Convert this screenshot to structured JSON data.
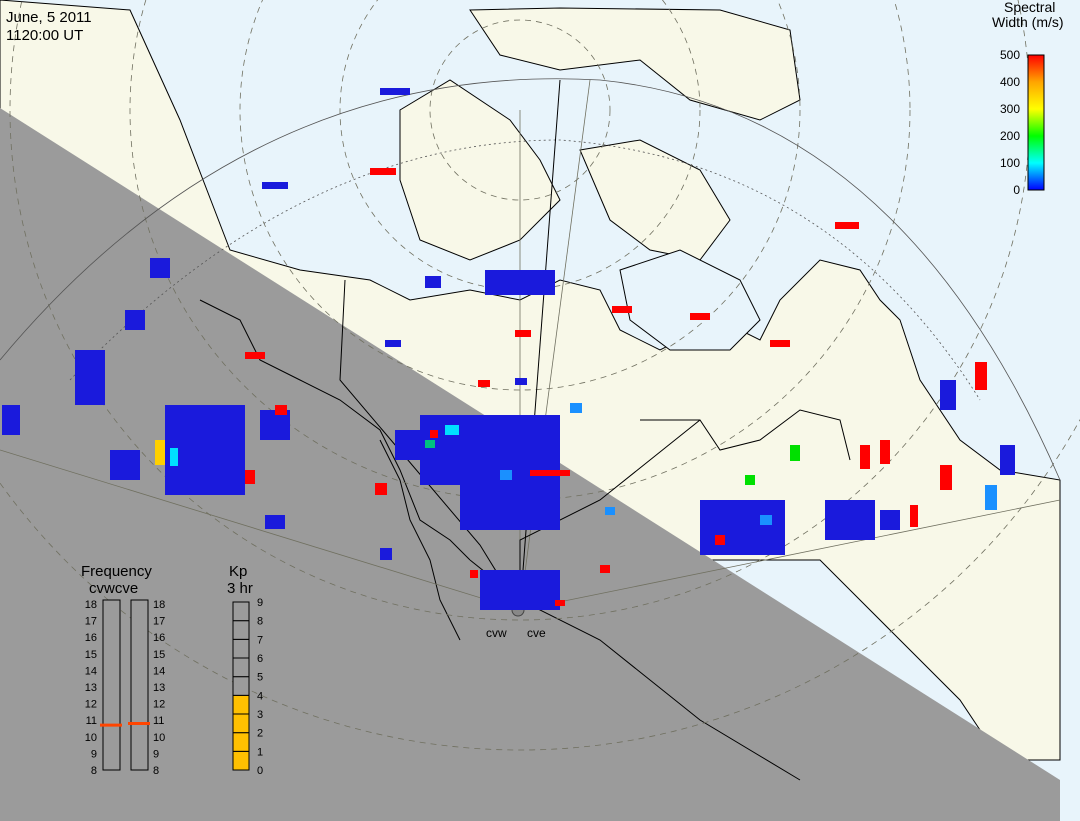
{
  "header": {
    "date": "June, 5 2011",
    "time": "1120:00 UT"
  },
  "colorbar": {
    "title_line1": "Spectral",
    "title_line2": "Width (m/s)",
    "ticks": [
      "500",
      "400",
      "300",
      "200",
      "100",
      "0"
    ],
    "colors": [
      "#ff0000",
      "#ffa500",
      "#ffff00",
      "#00ff00",
      "#00ffff",
      "#0000ff"
    ]
  },
  "radars": {
    "west": "cvw",
    "east": "cve"
  },
  "frequency": {
    "title": "Frequency",
    "subtitle": "cvwcve",
    "ticks": [
      "18",
      "17",
      "16",
      "15",
      "14",
      "13",
      "12",
      "11",
      "10",
      "9",
      "8"
    ],
    "cvw_value": 10.7,
    "cve_value": 10.8,
    "marker_color": "#ff4500"
  },
  "kp": {
    "title": "Kp",
    "subtitle": "3 hr",
    "ticks": [
      "9",
      "8",
      "7",
      "6",
      "5",
      "4",
      "3",
      "2",
      "1",
      "0"
    ],
    "value": 4,
    "fill_color": "#ffc000"
  },
  "colors": {
    "ocean": "#e8f4fb",
    "land": "#f8f8e8",
    "night": "#9b9b9b",
    "echo_blue": "#1a1adc"
  }
}
